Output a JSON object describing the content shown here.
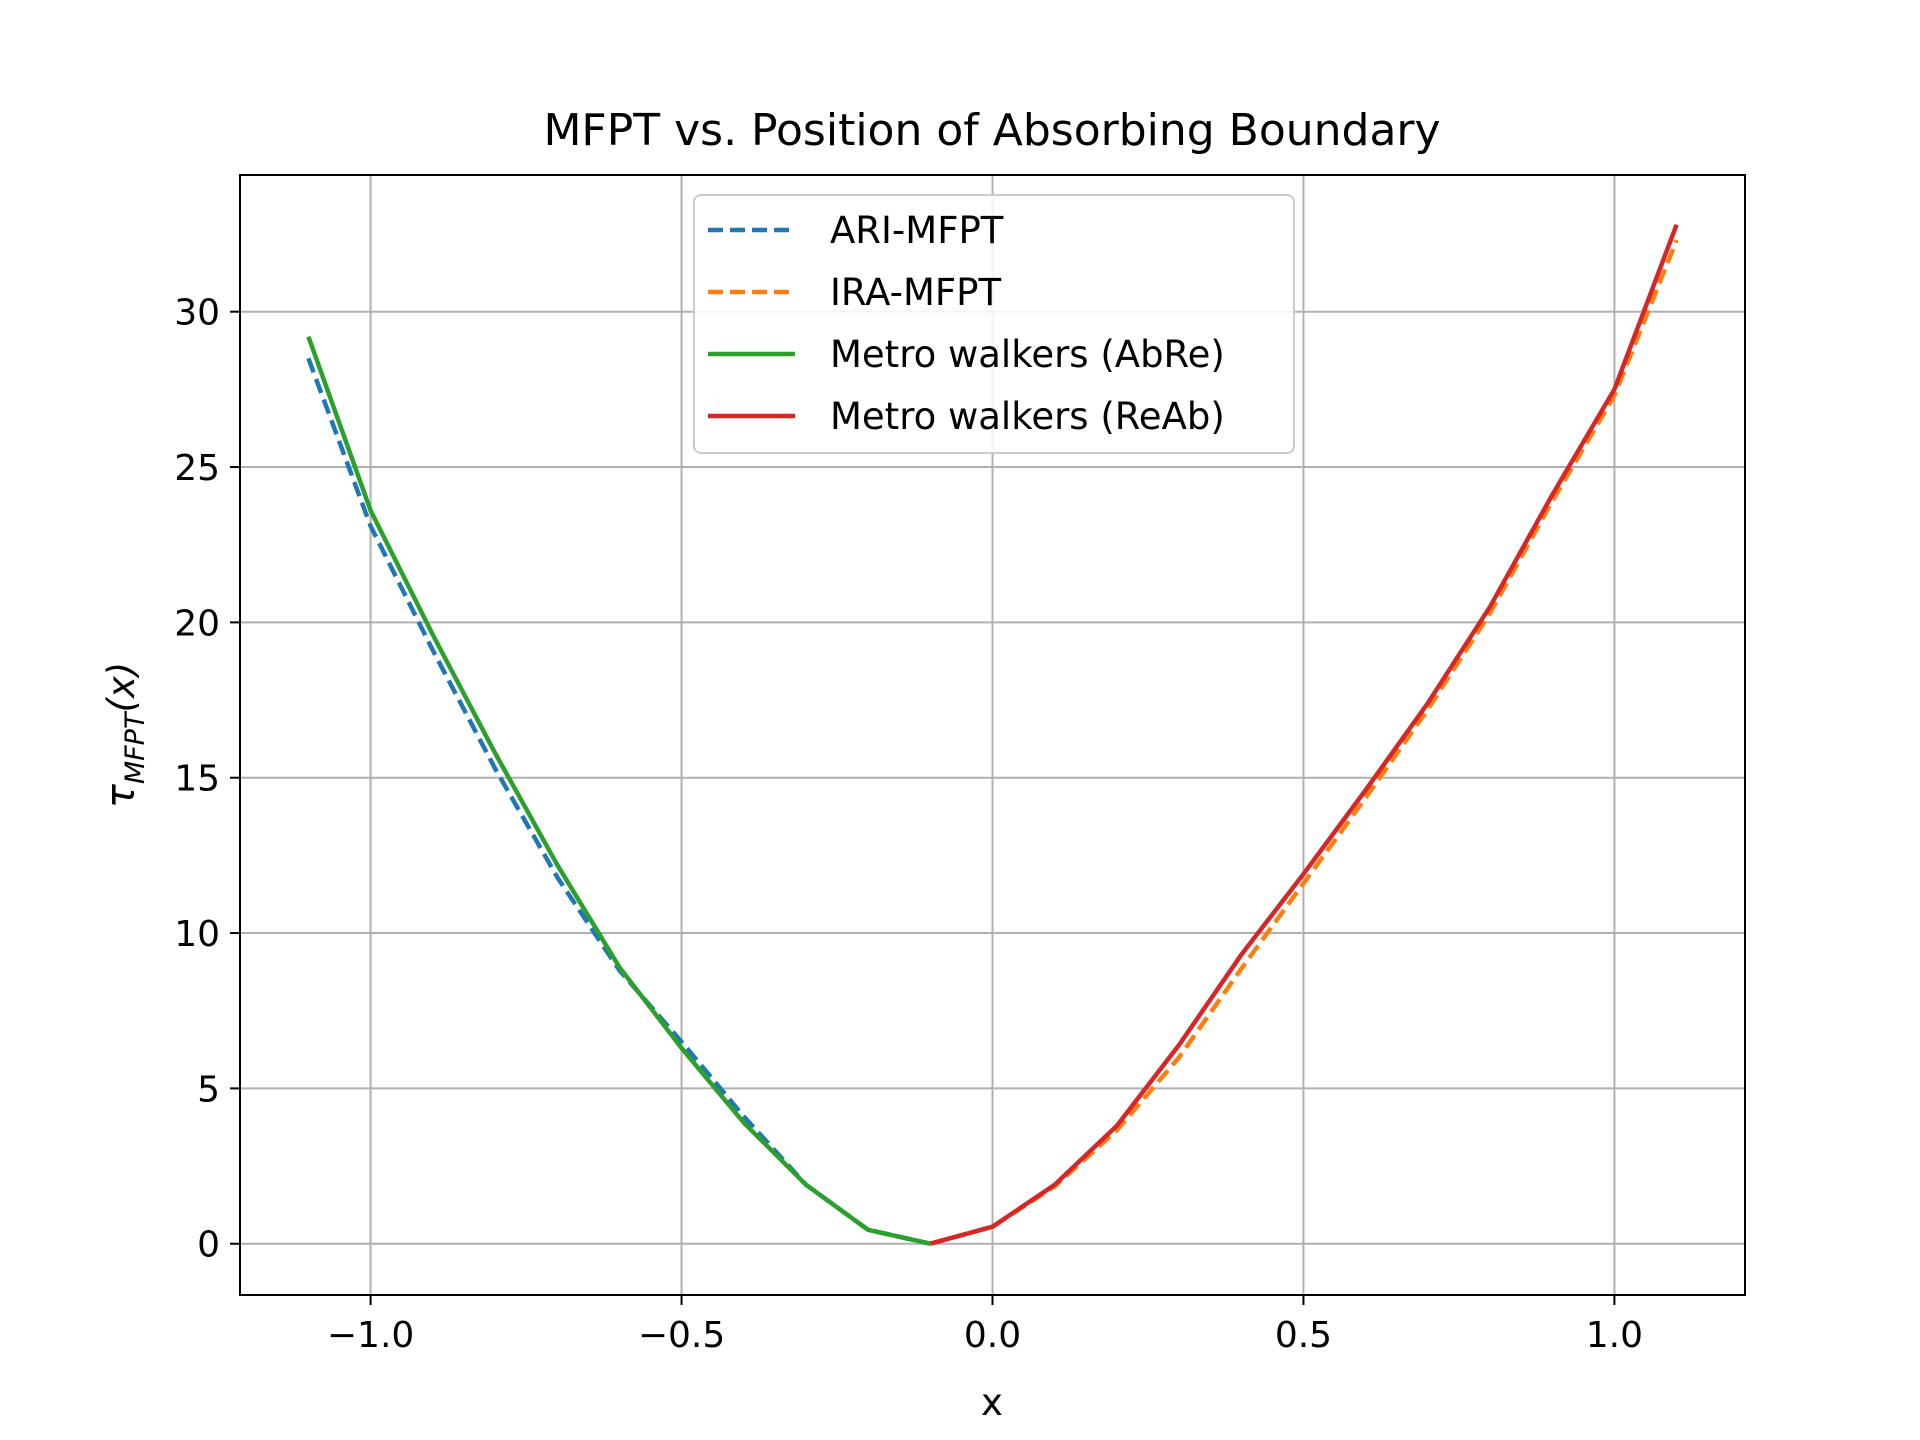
{
  "chart_data": {
    "type": "line",
    "title": "MFPT vs. Position of Absorbing Boundary",
    "xlabel": "x",
    "ylabel_symbol": "τ",
    "ylabel_subscript": "MFPT",
    "ylabel_arg": "(x)",
    "xlim": [
      -1.21,
      1.21
    ],
    "ylim": [
      -1.65,
      34.4
    ],
    "grid": true,
    "legend_position": "top-center",
    "x_ticks": [
      -1.0,
      -0.5,
      0.0,
      0.5,
      1.0
    ],
    "x_tick_labels": [
      "−1.0",
      "−0.5",
      "0.0",
      "0.5",
      "1.0"
    ],
    "y_ticks": [
      0,
      5,
      10,
      15,
      20,
      25,
      30
    ],
    "y_tick_labels": [
      "0",
      "5",
      "10",
      "15",
      "20",
      "25",
      "30"
    ],
    "series": [
      {
        "name": "ARI-MFPT",
        "color": "#1f77b4",
        "style": "dashed",
        "x": [
          -1.1,
          -1.0,
          -0.9,
          -0.8,
          -0.7,
          -0.6,
          -0.5,
          -0.4,
          -0.3,
          -0.2,
          -0.1
        ],
        "y": [
          28.5,
          23.1,
          19.1,
          15.3,
          11.8,
          8.8,
          6.5,
          4.1,
          1.9,
          0.45,
          0.0
        ]
      },
      {
        "name": "IRA-MFPT",
        "color": "#ff7f0e",
        "style": "dashed",
        "x": [
          -0.1,
          0.0,
          0.1,
          0.2,
          0.3,
          0.4,
          0.5,
          0.6,
          0.7,
          0.8,
          0.9,
          1.0,
          1.1
        ],
        "y": [
          0.0,
          0.55,
          1.85,
          3.65,
          6.0,
          8.85,
          11.6,
          14.35,
          17.2,
          20.3,
          23.9,
          27.3,
          32.3
        ]
      },
      {
        "name": "Metro walkers (AbRe)",
        "color": "#2ca02c",
        "style": "solid",
        "x": [
          -1.1,
          -1.0,
          -0.9,
          -0.8,
          -0.7,
          -0.6,
          -0.5,
          -0.4,
          -0.3,
          -0.2,
          -0.1
        ],
        "y": [
          29.2,
          23.6,
          19.6,
          15.8,
          12.2,
          8.9,
          6.3,
          3.9,
          1.9,
          0.45,
          0.0
        ]
      },
      {
        "name": "Metro walkers (ReAb)",
        "color": "#d62728",
        "style": "solid",
        "x": [
          -0.1,
          0.0,
          0.1,
          0.2,
          0.3,
          0.4,
          0.5,
          0.6,
          0.7,
          0.8,
          0.9,
          1.0,
          1.1
        ],
        "y": [
          0.0,
          0.55,
          1.9,
          3.8,
          6.4,
          9.3,
          11.9,
          14.6,
          17.4,
          20.5,
          24.1,
          27.5,
          32.8
        ]
      }
    ]
  }
}
